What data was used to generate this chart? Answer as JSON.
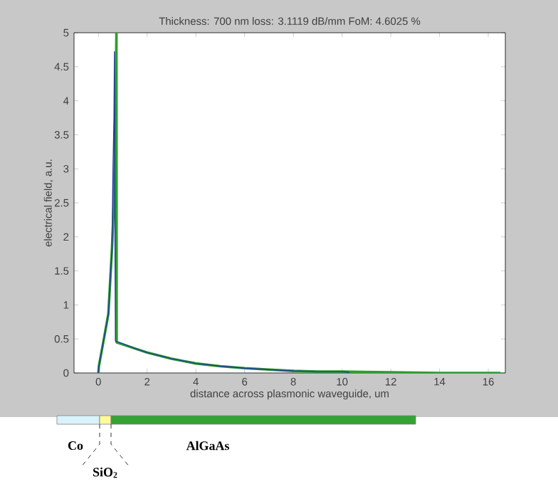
{
  "chart_data": {
    "type": "line",
    "title": "Thickness: 700 nm loss: 3.1119 dB/mm FoM: 4.6025 %",
    "xlabel": "distance across plasmonic waveguide, um",
    "ylabel": "electrical field, a.u.",
    "xlim": [
      -1,
      16.7
    ],
    "ylim": [
      0,
      5
    ],
    "xticks": [
      0,
      2,
      4,
      6,
      8,
      10,
      12,
      14,
      16
    ],
    "yticks": [
      0,
      0.5,
      1,
      1.5,
      2,
      2.5,
      3,
      3.5,
      4,
      4.5,
      5
    ],
    "grid": false,
    "marker": "none",
    "line_style": "solid",
    "series": [
      {
        "color": "#1f3a9e",
        "x": [
          0,
          0.02,
          0.2,
          0.41,
          0.56,
          0.6,
          0.64,
          0.66,
          0.68,
          0.7,
          1,
          1.5,
          2,
          3,
          4,
          5,
          6,
          7,
          8,
          9,
          10,
          10.3
        ],
        "values": [
          0,
          0.1,
          0.45,
          0.87,
          1.84,
          3,
          3.75,
          4.72,
          2,
          0.47,
          0.43,
          0.36,
          0.3,
          0.21,
          0.14,
          0.1,
          0.07,
          0.05,
          0.03,
          0.02,
          0.02,
          0.01
        ]
      },
      {
        "color": "#2e9e2e",
        "x": [
          0,
          0.02,
          0.2,
          0.41,
          0.56,
          0.64,
          0.7,
          0.74,
          0.75,
          1,
          1.5,
          2,
          3,
          4,
          5,
          6,
          7,
          8,
          9,
          10,
          12,
          14,
          16,
          16.5
        ],
        "values": [
          0,
          0.1,
          0.45,
          0.87,
          1.84,
          2.53,
          3.6,
          5,
          0.45,
          0.42,
          0.36,
          0.3,
          0.21,
          0.14,
          0.1,
          0.07,
          0.05,
          0.03,
          0.02,
          0.02,
          0.01,
          0,
          0,
          0
        ]
      }
    ],
    "annotations": [
      "Co",
      "SiO$_{2}$",
      "AlGaAs"
    ]
  }
}
